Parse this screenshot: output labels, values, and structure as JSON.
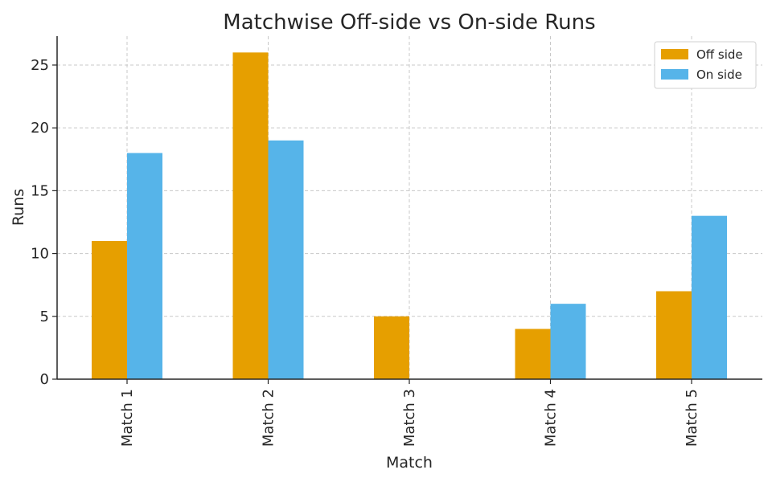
{
  "chart_data": {
    "type": "bar",
    "title": "Matchwise Off-side vs On-side Runs",
    "xlabel": "Match",
    "ylabel": "Runs",
    "categories": [
      "Match 1",
      "Match 2",
      "Match 3",
      "Match 4",
      "Match 5"
    ],
    "series": [
      {
        "name": "Off side",
        "color": "#E69F00",
        "values": [
          11,
          26,
          5,
          4,
          7
        ]
      },
      {
        "name": "On side",
        "color": "#56B4E9",
        "values": [
          18,
          19,
          0,
          6,
          13
        ]
      }
    ],
    "yticks": [
      "0",
      "5",
      "10",
      "15",
      "20",
      "25"
    ],
    "ylim": [
      0,
      27.3
    ],
    "grid": true,
    "legend_position": "top-right"
  }
}
